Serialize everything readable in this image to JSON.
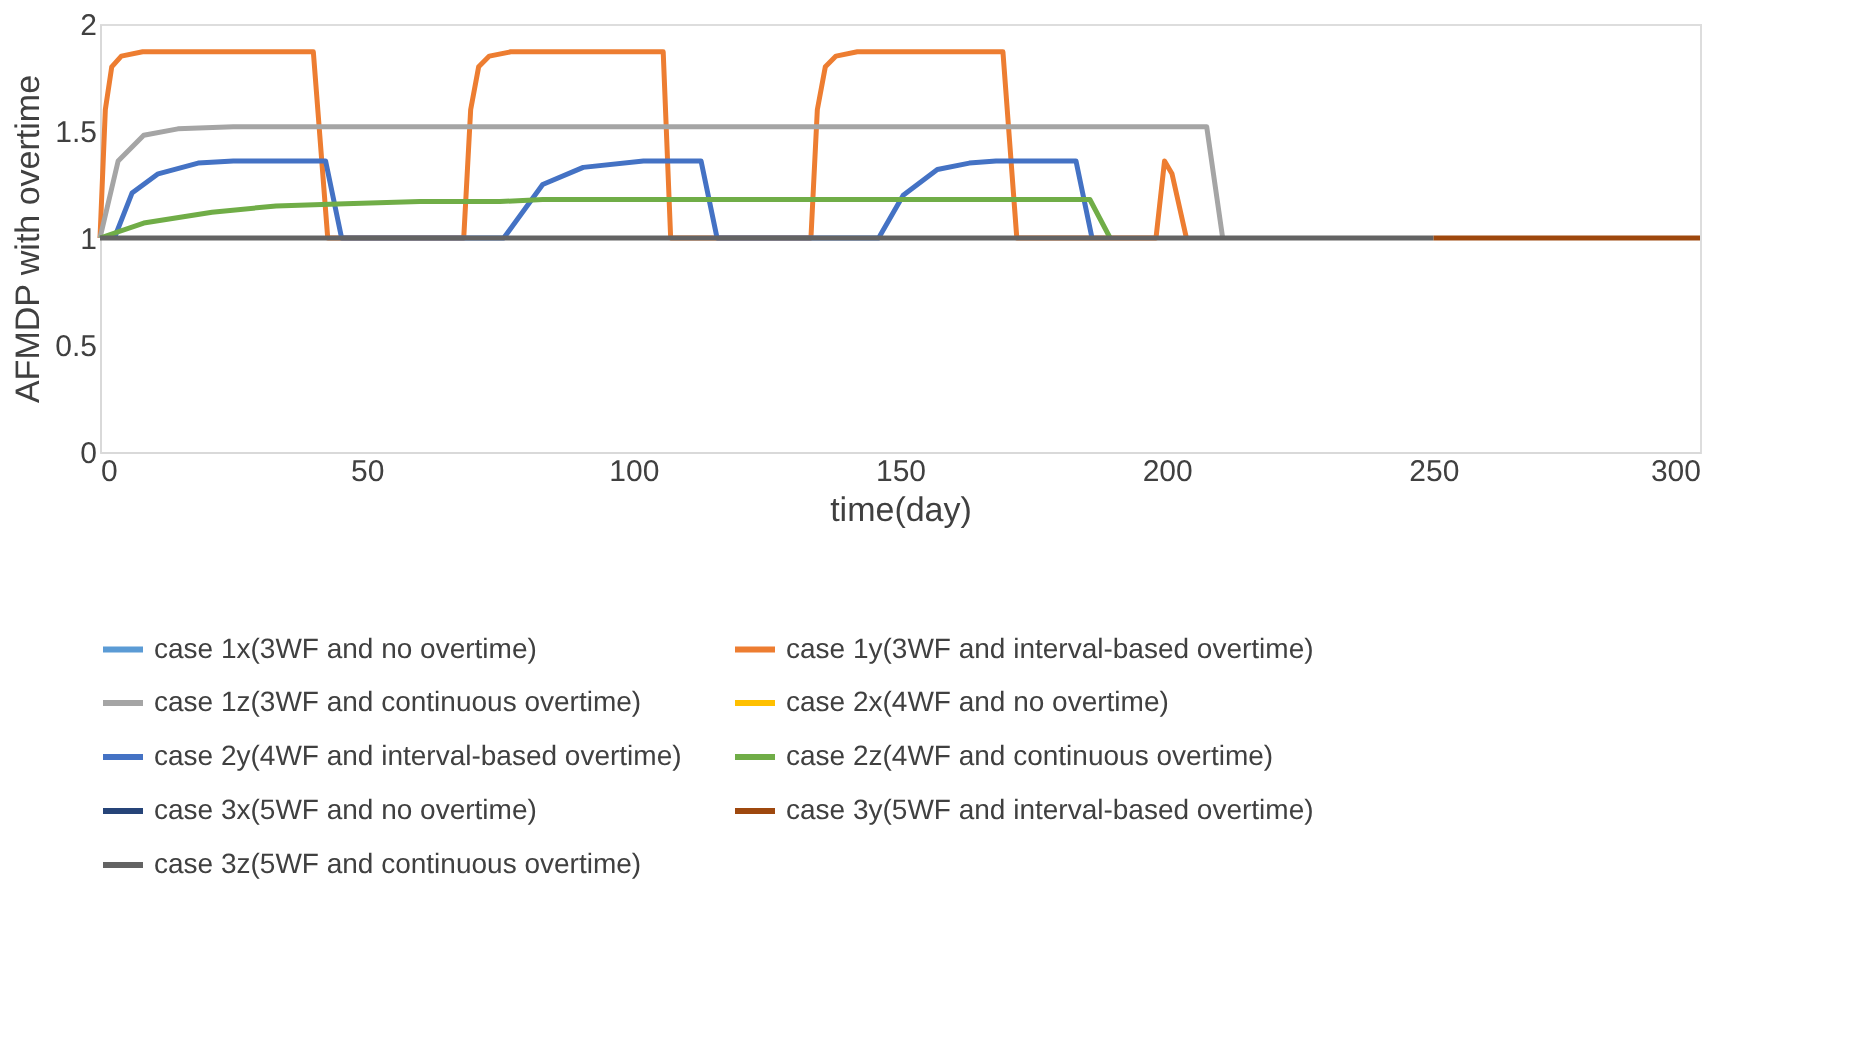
{
  "chart_data": {
    "type": "line",
    "xlabel": "time(day)",
    "ylabel": "AFMDP with overtime",
    "xlim": [
      0,
      300
    ],
    "xticks": [
      0,
      50,
      100,
      150,
      200,
      250,
      300
    ],
    "ylim": [
      0,
      2
    ],
    "yticks": [
      0,
      0.5,
      1,
      1.5,
      2
    ],
    "grid": false,
    "legend": "bottom",
    "marker": "none",
    "line_style": "solid",
    "series": [
      {
        "name": "case 1x(3WF and no overtime)",
        "color": "#5b9bd5"
      },
      {
        "name": "case 1y(3WF and interval-based overtime)",
        "color": "#ed7d31",
        "x": [
          0,
          1,
          2.2,
          4,
          8,
          40,
          42.7,
          68.2,
          69.5,
          71,
          73,
          77,
          105.6,
          107,
          133.3,
          134.5,
          136,
          138,
          142,
          169.3,
          171.9,
          198,
          199.6,
          201,
          203.7
        ],
        "values": [
          1,
          1.6,
          1.8,
          1.85,
          1.87,
          1.87,
          1,
          1,
          1.6,
          1.8,
          1.85,
          1.87,
          1.87,
          1,
          1,
          1.6,
          1.8,
          1.85,
          1.87,
          1.87,
          1,
          1,
          1.36,
          1.3,
          1
        ]
      },
      {
        "name": "case 1z(3WF and continuous overtime)",
        "color": "#a5a5a5",
        "x": [
          0,
          3.4,
          8.2,
          14.6,
          25,
          207.5,
          210.5
        ],
        "values": [
          1,
          1.36,
          1.48,
          1.51,
          1.52,
          1.52,
          1
        ]
      },
      {
        "name": "case 2x(4WF and no overtime)",
        "color": "#ffc000"
      },
      {
        "name": "case 2y(4WF and interval-based overtime)",
        "color": "#4472c4",
        "x": [
          2.7,
          6,
          10.9,
          18.4,
          25,
          42.3,
          45.3,
          75.7,
          83,
          90.6,
          101.9,
          112.7,
          115.7,
          146,
          150.6,
          157,
          163,
          168,
          183,
          186
        ],
        "values": [
          1,
          1.21,
          1.3,
          1.35,
          1.36,
          1.36,
          1,
          1,
          1.25,
          1.33,
          1.36,
          1.36,
          1,
          1,
          1.2,
          1.32,
          1.35,
          1.36,
          1.36,
          1
        ]
      },
      {
        "name": "case 2z(4WF and continuous overtime)",
        "color": "#70ad47",
        "x": [
          0,
          8.2,
          21,
          33,
          46,
          60,
          75,
          83,
          185.6,
          189.4
        ],
        "values": [
          1,
          1.07,
          1.12,
          1.15,
          1.16,
          1.17,
          1.17,
          1.18,
          1.18,
          1
        ]
      },
      {
        "name": "case 3x(5WF and no overtime)",
        "color": "#264478"
      },
      {
        "name": "case 3y(5WF and interval-based overtime)",
        "color": "#9e480e",
        "x": [
          250,
          300
        ],
        "values": [
          1,
          1
        ]
      },
      {
        "name": "case 3z(5WF and continuous overtime)",
        "color": "#636363",
        "x": [
          0,
          250
        ],
        "values": [
          1,
          1
        ]
      }
    ]
  }
}
